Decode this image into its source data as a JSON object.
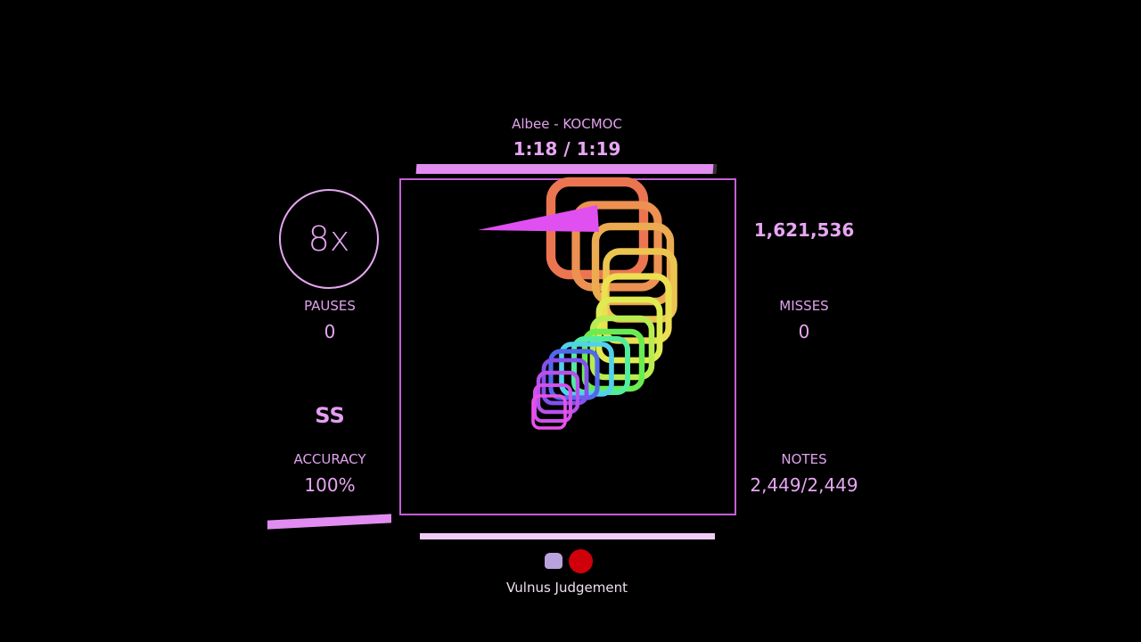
{
  "song": {
    "title": "Albee - KOCMOC",
    "time": "1:18 / 1:19",
    "progress": 0.987
  },
  "left": {
    "combo": "8x",
    "pauses_label": "PAUSES",
    "pauses": "0",
    "rank": "SS",
    "accuracy_label": "ACCURACY",
    "accuracy": "100%",
    "health": 1.0
  },
  "right": {
    "score": "1,621,536",
    "misses_label": "MISSES",
    "misses": "0",
    "notes_label": "NOTES",
    "notes": "2,449/2,449"
  },
  "footer": {
    "player": "Vulnus Judgement",
    "icons": [
      "robot-icon",
      "record-icon"
    ]
  },
  "colors": {
    "accent": "#e18cf0",
    "border": "#c45fd6",
    "record": "#d0000b"
  }
}
